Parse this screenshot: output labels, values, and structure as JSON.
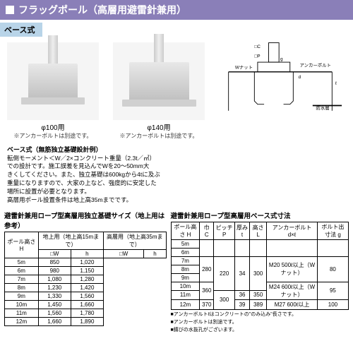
{
  "header": "フラッグポール（高層用避雷針兼用）",
  "subheader": "ベース式",
  "images": [
    {
      "label": "φ100用",
      "note": "※アンカーボルトは別途です。"
    },
    {
      "label": "φ140用",
      "note": "※アンカーボルトは別途です。"
    }
  ],
  "desc": {
    "title": "ベース式（無筋独立基礎設計例）",
    "lines": [
      "転倒モーメント＜W／2×コンクリート重量（2.3t／㎥）",
      "での設計です。施工誤差を見込んでWを20～50mm大",
      "きくしてください。また、独立基礎は600kgから4tに及ぶ",
      "重量になりますので、大家の上など、強度的に安定した",
      "場所に設置が必要となります。",
      "高層用ポール設置条件は地上高35mまでです。"
    ]
  },
  "left_table": {
    "title": "避雷針兼用ロープ型高層用独立基礎サイズ（地上用は参考）",
    "head1": [
      "ポール高さ H",
      "地上用（地上高15mまで）",
      "高層用（地上高35mまで）"
    ],
    "head2": [
      "□W",
      "h",
      "□W",
      "h"
    ],
    "rows": [
      [
        "5m",
        "850",
        "",
        "1,020",
        ""
      ],
      [
        "6m",
        "980",
        "",
        "1,150",
        ""
      ],
      [
        "7m",
        "1,080",
        "300",
        "1,280",
        "300"
      ],
      [
        "8m",
        "1,230",
        "",
        "1,420",
        ""
      ],
      [
        "9m",
        "1,330",
        "",
        "1,560",
        ""
      ],
      [
        "10m",
        "1,450",
        "",
        "1,660",
        ""
      ],
      [
        "11m",
        "1,560",
        "400",
        "1,780",
        "400"
      ],
      [
        "12m",
        "1,660",
        "",
        "1,890",
        ""
      ]
    ]
  },
  "right_table": {
    "title": "避雷針兼用ロープ型高層用ベース式寸法",
    "head": [
      "ポール高さ H",
      "巾 C",
      "ピッチ P",
      "厚み t",
      "高さ L",
      "アンカーボルト d×ℓ",
      "ボルト出寸法 g"
    ],
    "rows": [
      [
        "5m",
        "",
        "",
        "",
        "",
        "",
        ""
      ],
      [
        "6m",
        "",
        "",
        "",
        "",
        "",
        ""
      ],
      [
        "7m",
        "280",
        "220",
        "34",
        "300",
        "M20 500ℓ以上（Wナット）",
        "80"
      ],
      [
        "8m",
        "",
        "",
        "",
        "",
        "",
        ""
      ],
      [
        "9m",
        "",
        "",
        "",
        "",
        "",
        ""
      ],
      [
        "10m",
        "360",
        "",
        "",
        "",
        "M24 600ℓ以上（Wナット）",
        "95"
      ],
      [
        "11m",
        "",
        "300",
        "36",
        "350",
        "",
        ""
      ],
      [
        "12m",
        "370",
        "",
        "39",
        "389",
        "M27 600ℓ以上",
        "100"
      ]
    ],
    "notes": [
      "■アンカーボルトℓはコンクリートの\"のみ込み\"長さです。",
      "■アンカーボルトは別途です。",
      "■錆びの水抜孔がございます。"
    ]
  },
  "diagram_labels": {
    "wnut": "Wナット",
    "anchor": "アンカーボルト",
    "waterproof": "防水層"
  }
}
